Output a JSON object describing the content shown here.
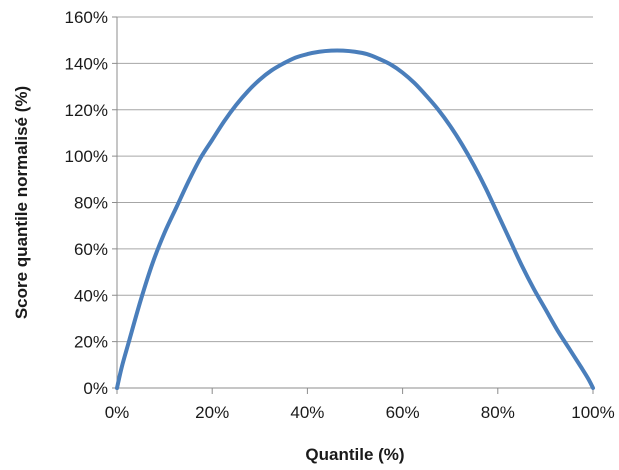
{
  "chart_data": {
    "type": "line",
    "title": "",
    "xlabel": "Quantile (%)",
    "ylabel": "Score quantile normalisé (%)",
    "xlim": [
      0,
      100
    ],
    "ylim": [
      0,
      160
    ],
    "x_ticks": [
      0,
      20,
      40,
      60,
      80,
      100
    ],
    "y_ticks": [
      0,
      20,
      40,
      60,
      80,
      100,
      120,
      140,
      160
    ],
    "x_tick_labels": [
      "0%",
      "20%",
      "40%",
      "60%",
      "80%",
      "100%"
    ],
    "y_tick_labels": [
      "0%",
      "20%",
      "40%",
      "60%",
      "80%",
      "100%",
      "120%",
      "140%",
      "160%"
    ],
    "grid": {
      "horizontal": true,
      "vertical": false
    },
    "legend": "none",
    "series": [
      {
        "color": "#4a7ebb",
        "x": [
          0,
          1,
          2.5,
          5,
          7.5,
          10,
          12.5,
          15,
          17.5,
          20,
          22.5,
          25,
          27.5,
          30,
          32.5,
          35,
          37.5,
          40,
          42.5,
          45,
          47.5,
          50,
          52.5,
          55,
          57.5,
          60,
          62.5,
          65,
          67.5,
          70,
          72.5,
          75,
          77.5,
          80,
          82.5,
          85,
          87.5,
          90,
          92.5,
          95,
          97.5,
          99,
          100
        ],
        "y": [
          0,
          9,
          20,
          38,
          54,
          67,
          78,
          89,
          99,
          107,
          115,
          122,
          128,
          133,
          137,
          140,
          142.5,
          144,
          145,
          145.5,
          145.5,
          145,
          144,
          142,
          139.5,
          136,
          131.5,
          126,
          120,
          113,
          105,
          96,
          86,
          75,
          64,
          53,
          43,
          34,
          25,
          17,
          9,
          4,
          0
        ]
      }
    ]
  }
}
